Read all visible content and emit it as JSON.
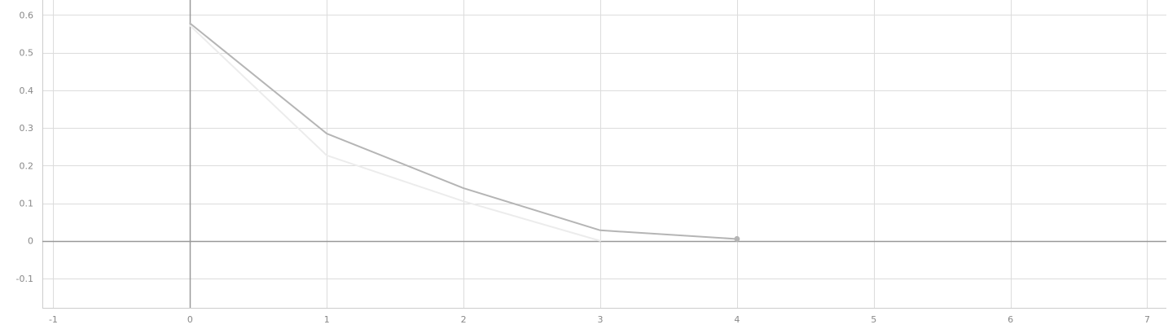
{
  "chart_data": {
    "type": "line",
    "title": "",
    "xlabel": "",
    "ylabel": "",
    "xlim": [
      -1.08,
      7.14
    ],
    "ylim": [
      -0.178,
      0.64
    ],
    "x_ticks": [
      -1,
      0,
      1,
      2,
      3,
      4,
      5,
      6,
      7
    ],
    "x_tick_labels": [
      "-1",
      "0",
      "1",
      "2",
      "3",
      "4",
      "5",
      "6",
      "7"
    ],
    "y_ticks": [
      0.6,
      0.5,
      0.4,
      0.3,
      0.2,
      0.1,
      0,
      -0.1
    ],
    "y_tick_labels": [
      "0.6",
      "0.5",
      "0.4",
      "0.3",
      "0.2",
      "0.1",
      "0",
      "-0.1"
    ],
    "grid": true,
    "legend": "none",
    "series": [
      {
        "x": [
          0,
          1,
          2,
          3,
          4
        ],
        "y": [
          0.578,
          0.285,
          0.14,
          0.028,
          0.005
        ],
        "color": "#b5b5b5",
        "last_point_marker": true
      },
      {
        "x": [
          0,
          1,
          2,
          3
        ],
        "y": [
          0.572,
          0.227,
          0.105,
          0.0
        ],
        "color": "#ececec",
        "last_point_marker": false
      }
    ],
    "colors": {
      "grid": "#dcdcdc",
      "axis_zero": "#999999",
      "frame": "#cccccc",
      "tick_label": "#888888"
    }
  }
}
